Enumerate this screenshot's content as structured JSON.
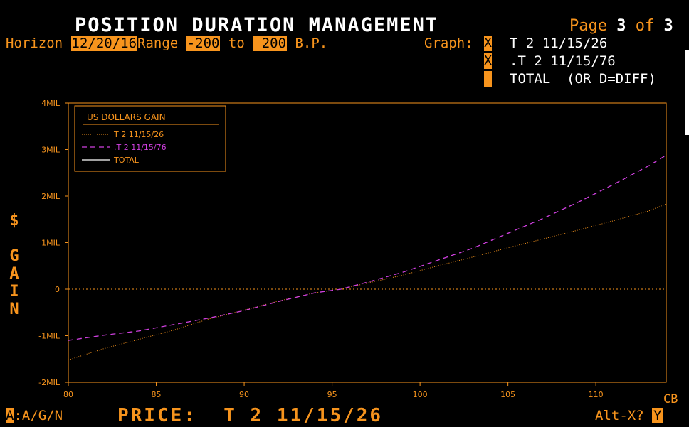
{
  "header": {
    "title": "POSITION DURATION MANAGEMENT",
    "page_label": "Page",
    "page_current": "3",
    "page_of": "of",
    "page_total": "3",
    "horizon_label": "Horizon",
    "horizon_value": "12/20/16",
    "range_label": "Range",
    "range_from": "-200",
    "range_to_label": "to",
    "range_to": " 200",
    "range_unit": "B.P.",
    "graph_label": "Graph:"
  },
  "graph_options": [
    {
      "mark": "X",
      "label": "T 2 11/15/26"
    },
    {
      "mark": "X",
      "label": ".T 2 11/15/76"
    },
    {
      "mark": "",
      "label": "TOTAL  (OR D=DIFF)"
    }
  ],
  "y_axis_title_chars": [
    "$",
    "",
    "G",
    "A",
    "I",
    "N"
  ],
  "footer": {
    "mode_key": "A",
    "mode_rest": ":A/G/N",
    "price_label": "PRICE:  T 2 11/15/26",
    "cb_label": "CB",
    "altx_label": "Alt-X?",
    "altx_value": "Y"
  },
  "colors": {
    "accent": "#f7941d",
    "series_t26": "#f7941d",
    "series_t76": "#d040e0",
    "series_total": "#ffffff",
    "background": "#000000"
  },
  "chart_data": {
    "type": "line",
    "title": "",
    "xlabel": "",
    "ylabel": "$ GAIN",
    "xlim": [
      80,
      114
    ],
    "ylim": [
      -2000000,
      4000000
    ],
    "x_ticks": [
      80,
      85,
      90,
      95,
      100,
      105,
      110
    ],
    "y_ticks": [
      {
        "value": 4000000,
        "label": "4MIL"
      },
      {
        "value": 3000000,
        "label": "3MIL"
      },
      {
        "value": 2000000,
        "label": "2MIL"
      },
      {
        "value": 1000000,
        "label": "1MIL"
      },
      {
        "value": 0,
        "label": "0"
      },
      {
        "value": -1000000,
        "label": "-1MIL"
      },
      {
        "value": -2000000,
        "label": "-2MIL"
      }
    ],
    "legend_title": "US DOLLARS GAIN",
    "legend_position": "top-left",
    "series": [
      {
        "name": "T 2 11/15/26",
        "style": "dotted",
        "x": [
          80,
          82,
          84,
          86,
          88,
          90,
          92,
          94,
          95.5,
          97,
          99,
          101,
          103,
          105,
          107,
          109,
          111,
          113,
          114
        ],
        "y": [
          -1520000,
          -1280000,
          -1080000,
          -880000,
          -640000,
          -450000,
          -250000,
          -80000,
          0,
          130000,
          300000,
          500000,
          690000,
          890000,
          1080000,
          1270000,
          1470000,
          1680000,
          1830000
        ]
      },
      {
        "name": ".T 2 11/15/76",
        "style": "dashed",
        "x": [
          80,
          82,
          84,
          86,
          88,
          90,
          92,
          94,
          95.5,
          97,
          99,
          101,
          103,
          105,
          107,
          109,
          111,
          113,
          114
        ],
        "y": [
          -1100000,
          -990000,
          -900000,
          -760000,
          -620000,
          -460000,
          -260000,
          -80000,
          0,
          150000,
          360000,
          620000,
          880000,
          1200000,
          1520000,
          1870000,
          2250000,
          2650000,
          2880000
        ]
      },
      {
        "name": "TOTAL",
        "style": "solid",
        "x": [],
        "y": []
      }
    ],
    "zero_line": true,
    "grid": false
  }
}
